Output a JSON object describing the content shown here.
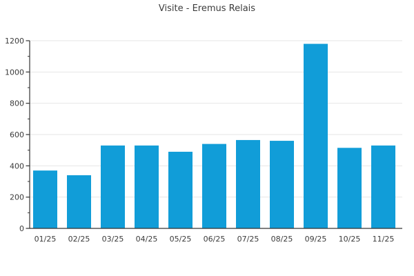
{
  "chart_data": {
    "type": "bar",
    "title": "Visite - Eremus Relais",
    "categories": [
      "01/25",
      "02/25",
      "03/25",
      "04/25",
      "05/25",
      "06/25",
      "07/25",
      "08/25",
      "09/25",
      "10/25",
      "11/25"
    ],
    "values": [
      370,
      340,
      530,
      530,
      490,
      540,
      565,
      560,
      1180,
      515,
      530
    ],
    "xlabel": "",
    "ylabel": "",
    "ylim": [
      0,
      1200
    ],
    "ytick_step": 200,
    "yminor_step": 100,
    "grid": "horizontal-major",
    "legend": "none"
  },
  "colors": {
    "bar": "#119dd8",
    "gridline": "#e6e6e6",
    "axis": "#333333",
    "tick_label": "#3a3a3a",
    "title_text": "#3c3c3c"
  }
}
